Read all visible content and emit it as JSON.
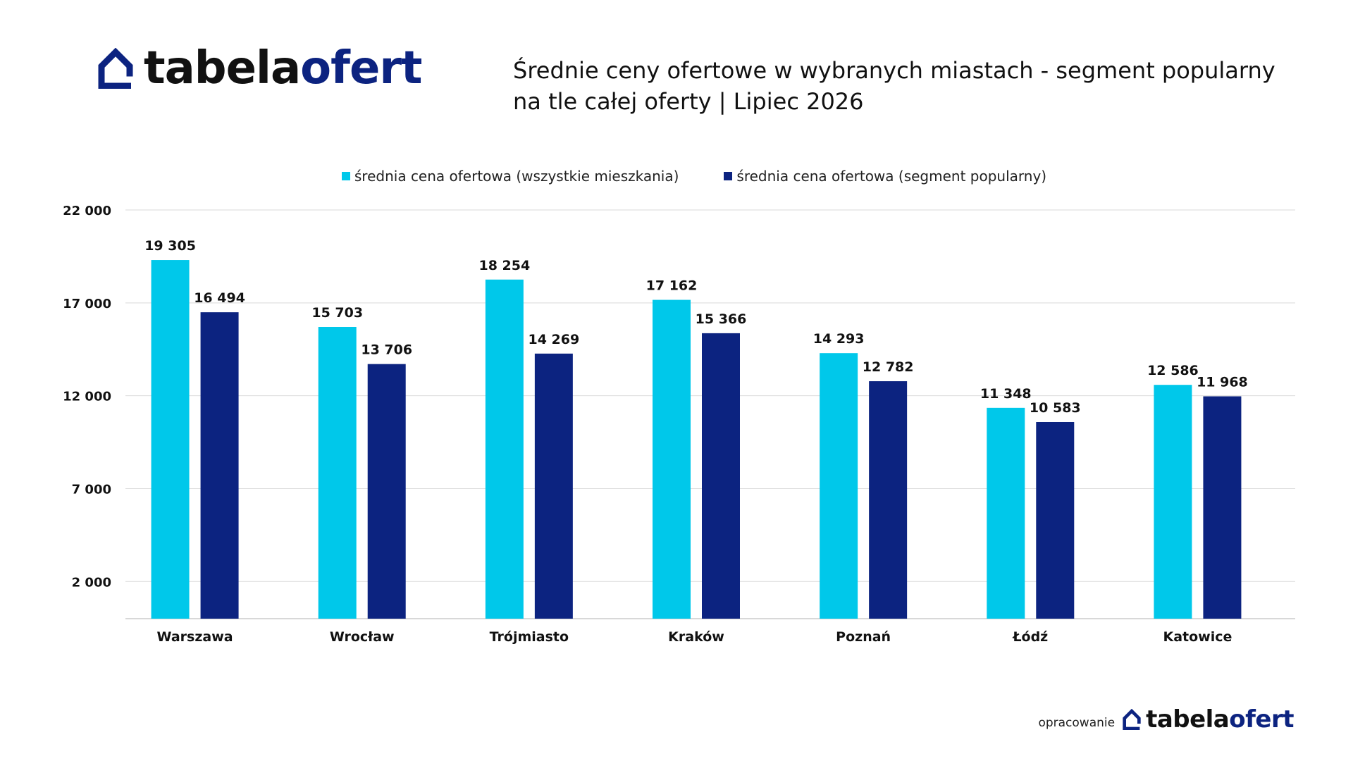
{
  "brand": {
    "logo_word_1": "tabela",
    "logo_word_2": "ofert",
    "dark_color": "#111111",
    "accent_color": "#0c2380"
  },
  "header": {
    "title_line_1": "Średnie ceny ofertowe w wybranych miastach - segment popularny",
    "title_line_2": "na tle całej oferty  | Lipiec  2026"
  },
  "footer": {
    "label": "opracowanie"
  },
  "chart_data": {
    "type": "bar",
    "categories": [
      "Warszawa",
      "Wrocław",
      "Trójmiasto",
      "Kraków",
      "Poznań",
      "Łódź",
      "Katowice"
    ],
    "series": [
      {
        "name": "średnia cena ofertowa (wszystkie mieszkania)",
        "color": "#00c8ea",
        "values": [
          19305,
          15703,
          18254,
          17162,
          14293,
          11348,
          12586
        ],
        "labels": [
          "19 305",
          "15 703",
          "18 254",
          "17 162",
          "14 293",
          "11 348",
          "12 586"
        ]
      },
      {
        "name": "średnia cena ofertowa (segment popularny)",
        "color": "#0c2380",
        "values": [
          16494,
          13706,
          14269,
          15366,
          12782,
          10583,
          11968
        ],
        "labels": [
          "16 494",
          "13 706",
          "14 269",
          "15 366",
          "12 782",
          "10 583",
          "11 968"
        ]
      }
    ],
    "yticks": [
      2000,
      7000,
      12000,
      17000,
      22000
    ],
    "ytick_labels": [
      "2 000",
      "7 000",
      "12 000",
      "17 000",
      "22 000"
    ],
    "ylim": [
      0,
      22000
    ],
    "grid": true,
    "legend_position": "top-center"
  }
}
